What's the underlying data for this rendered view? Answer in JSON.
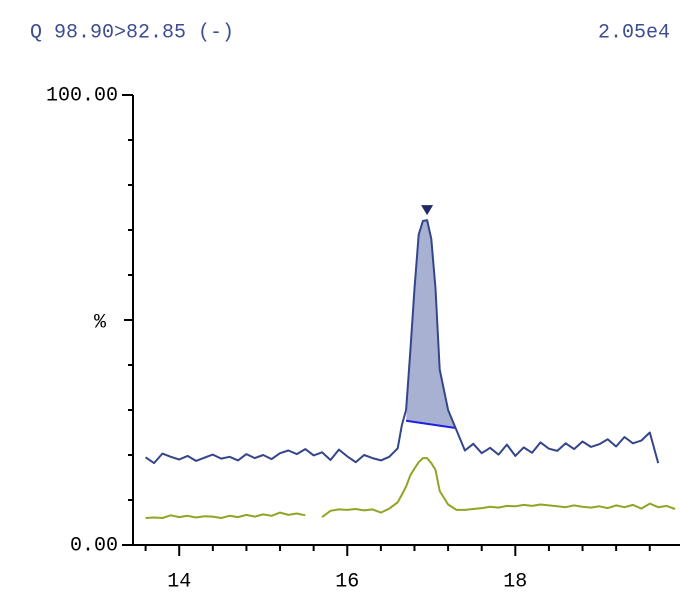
{
  "chart_data": {
    "type": "chromatogram",
    "title": "Q 98.90>82.85 (-)",
    "intensity": "2.05e4",
    "y_label": "%",
    "xlim": [
      13.45,
      19.96
    ],
    "xticks": [
      14,
      16,
      18
    ],
    "minor_xticks": [
      13.6,
      14.4,
      14.8,
      15.2,
      15.6,
      16.4,
      16.8,
      17.2,
      17.6,
      18.4,
      18.8,
      19.2,
      19.6
    ],
    "ylim": [
      0,
      100
    ],
    "yticks": [
      {
        "value": 0,
        "label": "0.00"
      },
      {
        "value": 100,
        "label": "100.00"
      }
    ],
    "minor_yticks": [
      10,
      20,
      30,
      40,
      50,
      60,
      70,
      80,
      90
    ],
    "x": [
      13.6,
      13.7,
      13.8,
      13.9,
      14.0,
      14.1,
      14.2,
      14.3,
      14.4,
      14.5,
      14.6,
      14.7,
      14.8,
      14.9,
      15.0,
      15.1,
      15.2,
      15.3,
      15.4,
      15.5,
      15.6,
      15.7,
      15.8,
      15.9,
      16.0,
      16.1,
      16.2,
      16.3,
      16.4,
      16.5,
      16.6,
      16.65,
      16.7,
      16.75,
      16.8,
      16.85,
      16.9,
      16.95,
      17.0,
      17.05,
      17.1,
      17.2,
      17.3,
      17.4,
      17.5,
      17.6,
      17.7,
      17.8,
      17.9,
      18.0,
      18.1,
      18.2,
      18.3,
      18.4,
      18.5,
      18.6,
      18.7,
      18.8,
      18.9,
      19.0,
      19.1,
      19.2,
      19.3,
      19.4,
      19.5,
      19.6,
      19.7,
      19.8,
      19.9
    ],
    "series": [
      {
        "color": "#34468a",
        "values": [
          19.5,
          18.2,
          20.3,
          19.6,
          19.0,
          19.8,
          18.7,
          19.4,
          20.1,
          19.2,
          19.6,
          18.8,
          20.2,
          19.3,
          20.0,
          19.1,
          20.4,
          21.0,
          20.2,
          21.3,
          19.9,
          20.6,
          18.9,
          21.2,
          19.7,
          18.4,
          20.0,
          19.3,
          18.8,
          19.6,
          21.5,
          26.7,
          30.0,
          43.0,
          57.0,
          69.0,
          72.0,
          72.2,
          68.0,
          57.0,
          39.0,
          30.0,
          25.5,
          21.0,
          22.5,
          20.4,
          21.6,
          20.1,
          22.3,
          19.8,
          21.7,
          20.5,
          22.8,
          21.4,
          20.9,
          22.6,
          21.3,
          23.0,
          21.8,
          22.4,
          23.5,
          21.9,
          24.0,
          22.6,
          23.2,
          25.0,
          18.2,
          null,
          null
        ]
      },
      {
        "color": "#8ea625",
        "values": [
          6.0,
          6.1,
          6.0,
          6.6,
          6.2,
          6.5,
          6.1,
          6.4,
          6.3,
          6.0,
          6.5,
          6.2,
          6.7,
          6.3,
          6.8,
          6.5,
          7.2,
          6.7,
          7.0,
          6.6,
          null,
          6.2,
          7.6,
          7.9,
          7.8,
          8.0,
          7.7,
          7.9,
          7.2,
          8.1,
          9.5,
          11.2,
          13.0,
          15.5,
          17.0,
          18.4,
          19.3,
          19.3,
          18.2,
          16.7,
          12.0,
          9.0,
          7.8,
          7.8,
          8.0,
          8.2,
          8.5,
          8.3,
          8.7,
          8.6,
          8.9,
          8.7,
          9.0,
          8.8,
          8.6,
          8.4,
          8.8,
          8.5,
          8.3,
          8.6,
          8.2,
          8.8,
          8.4,
          8.9,
          8.1,
          9.2,
          8.4,
          8.7,
          8.0
        ]
      }
    ],
    "peak": {
      "start": 16.7,
      "end": 17.29,
      "start_level": 27.6,
      "end_level": 26.0,
      "apex": 16.95,
      "fill": "#a9b1d3",
      "baseline_color": "#1f1fe0"
    }
  }
}
